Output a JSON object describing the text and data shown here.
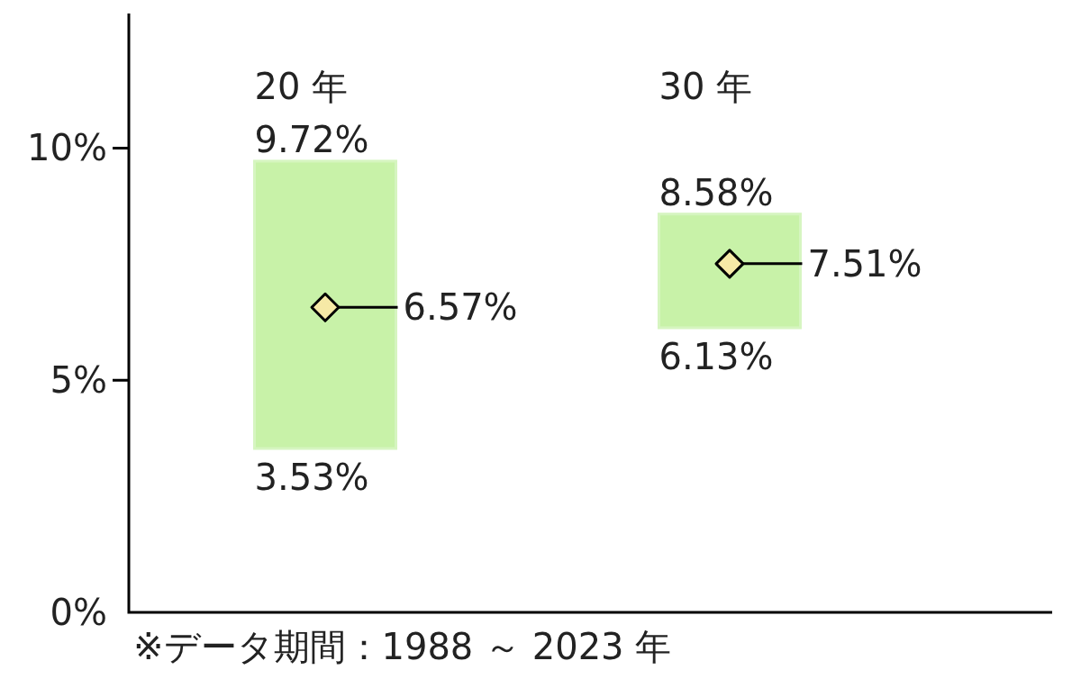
{
  "chart_data": {
    "type": "bar",
    "categories": [
      "20 年",
      "30 年"
    ],
    "series": [
      {
        "base": [
          3.53,
          6.13
        ],
        "values": [
          6.19,
          2.45
        ],
        "color": "#c8f2a8"
      },
      {
        "type": "scatter",
        "values": [
          6.57,
          7.51
        ],
        "value_labels": [
          "6.57%",
          "7.51%"
        ],
        "color": "#f6e9a6",
        "marker": "diamond"
      }
    ],
    "ylim": [
      0,
      12.9
    ],
    "yticks": [
      {
        "value": 0,
        "label": "0%"
      },
      {
        "value": 5,
        "label": "5%"
      },
      {
        "value": 10,
        "label": "10%"
      }
    ],
    "annotations": [
      {
        "text": "9.72%",
        "x": "20 年",
        "y": 9.72
      },
      {
        "text": "3.53%",
        "x": "20 年",
        "y": 3.53
      },
      {
        "text": "8.58%",
        "x": "30 年",
        "y": 8.58
      },
      {
        "text": "6.13%",
        "x": "30 年",
        "y": 6.13
      },
      "※データ期間：1988 ～ 2023 年"
    ]
  }
}
